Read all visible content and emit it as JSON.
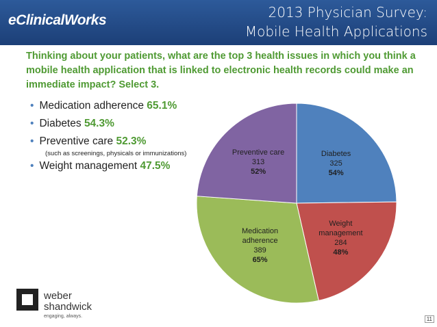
{
  "header": {
    "logo": "eClinicalWorks",
    "title_line1": "2013 Physician Survey:",
    "title_line2": "Mobile Health Applications"
  },
  "question": "Thinking about your patients, what are the top 3 health issues in which you think a mobile health application that is linked to electronic health records could make an immediate impact?  Select 3.",
  "bullets": [
    {
      "label": "Medication adherence",
      "value": "65.1%"
    },
    {
      "label": "Diabetes",
      "value": "54.3%"
    },
    {
      "label": "Preventive care",
      "value": "52.3%",
      "note": "(such as screenings, physicals or immunizations)"
    },
    {
      "label": "Weight management",
      "value": "47.5%"
    }
  ],
  "chart_data": {
    "type": "pie",
    "categories": [
      "Diabetes",
      "Weight management",
      "Medication adherence",
      "Preventive care"
    ],
    "values": [
      325,
      284,
      389,
      313
    ],
    "percent_labels": [
      "54%",
      "48%",
      "65%",
      "52%"
    ],
    "colors": [
      "#4f81bd",
      "#c0504d",
      "#9bbb59",
      "#8064a2"
    ]
  },
  "footer": {
    "brand_line1": "weber",
    "brand_line2": "shandwick",
    "tagline": "engaging, always.",
    "page_number": "11"
  }
}
